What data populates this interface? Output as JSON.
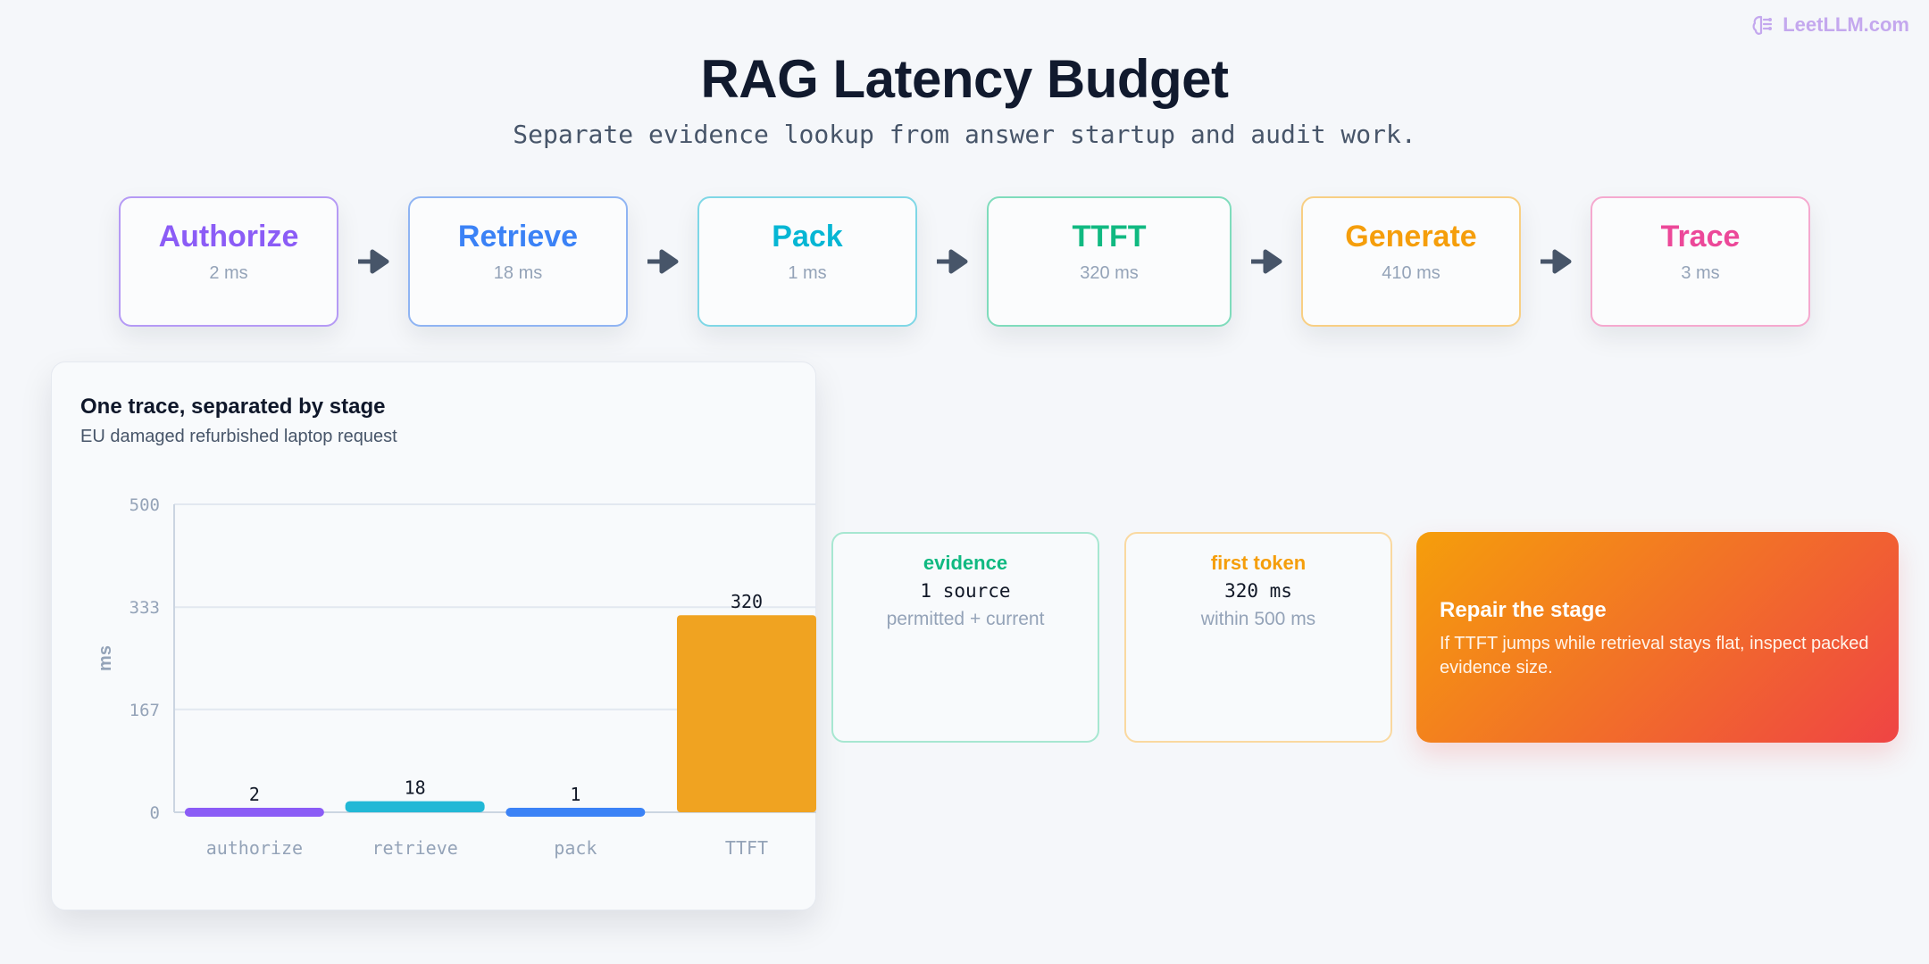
{
  "brand": {
    "text": "LeetLLM.com",
    "icon": "brain-icon",
    "color": "#c4a8ee"
  },
  "title": "RAG Latency Budget",
  "subtitle": "Separate evidence lookup from answer startup and audit work.",
  "stages": [
    {
      "name": "Authorize",
      "ms": "2 ms",
      "color": "#8b5cf6",
      "border": "#b59af5"
    },
    {
      "name": "Retrieve",
      "ms": "18 ms",
      "color": "#3b82f6",
      "border": "#8fb4f3"
    },
    {
      "name": "Pack",
      "ms": "1 ms",
      "color": "#06b6d4",
      "border": "#7fd7e6"
    },
    {
      "name": "TTFT",
      "ms": "320 ms",
      "color": "#10b981",
      "border": "#7fdcbc"
    },
    {
      "name": "Generate",
      "ms": "410 ms",
      "color": "#f59e0b",
      "border": "#f8cf84"
    },
    {
      "name": "Trace",
      "ms": "3 ms",
      "color": "#ec4899",
      "border": "#f5a9cf"
    }
  ],
  "arrow_icon": "arrow-right-icon",
  "panel": {
    "title": "One trace, separated by stage",
    "subtitle": "EU damaged refurbished laptop request"
  },
  "chart_data": {
    "type": "bar",
    "categories": [
      "authorize",
      "retrieve",
      "pack",
      "TTFT"
    ],
    "values": [
      2,
      18,
      1,
      320
    ],
    "data_labels": [
      "2",
      "18",
      "1",
      "320"
    ],
    "colors": [
      "#8b5cf6",
      "#22b8d6",
      "#3b82f6",
      "#f0a321"
    ],
    "ylabel": "ms",
    "ylim": [
      0,
      500
    ],
    "yticks": [
      0,
      167,
      333,
      500
    ],
    "ytick_labels": [
      "0",
      "167",
      "333",
      "500"
    ],
    "grid": true
  },
  "metrics": [
    {
      "heading": "evidence",
      "value": "1 source",
      "detail": "permitted + current",
      "color": "#10b981",
      "border": "#a7e7d1"
    },
    {
      "heading": "first token",
      "value": "320 ms",
      "detail": "within 500 ms",
      "color": "#f59e0b",
      "border": "#fad9a0"
    }
  ],
  "repair": {
    "heading": "Repair the stage",
    "body": "If TTFT jumps while retrieval stays flat, inspect packed evidence size."
  }
}
